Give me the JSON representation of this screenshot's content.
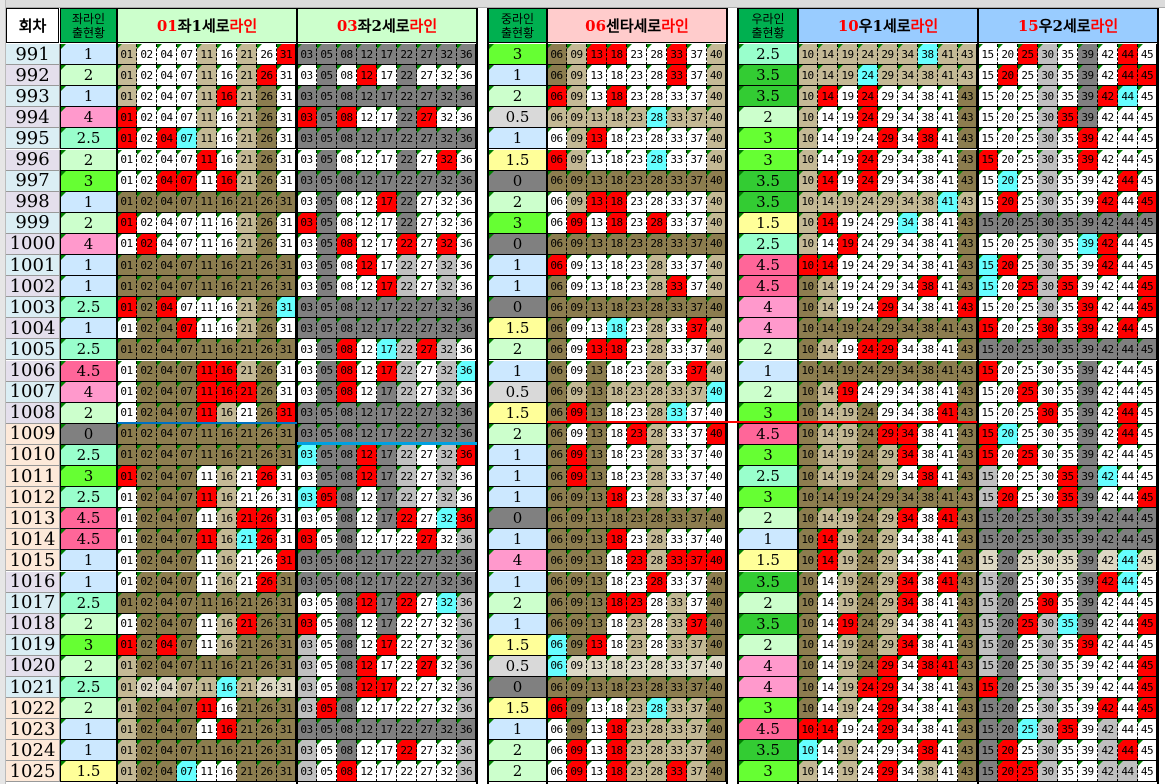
{
  "header": {
    "round": "회차",
    "left_status": [
      "좌라인",
      "출현황"
    ],
    "mid_status": [
      "중라인",
      "출현황"
    ],
    "right_status": [
      "우라인",
      "출현황"
    ],
    "blocks": [
      {
        "num": "01",
        "mid": "좌1세로",
        "tail": "라인"
      },
      {
        "num": "03",
        "mid": " 좌2세로",
        "tail": "라인"
      },
      {
        "num": "06",
        "mid": " 센타세로",
        "tail": "라인"
      },
      {
        "num": "10",
        "mid": " 우1세로",
        "tail": "라인"
      },
      {
        "num": "15",
        "mid": " 우2세로",
        "tail": "라인"
      }
    ]
  },
  "block_numbers": [
    [
      "01",
      "02",
      "04",
      "07",
      "11",
      "16",
      "21",
      "26",
      "31"
    ],
    [
      "03",
      "05",
      "08",
      "12",
      "17",
      "22",
      "27",
      "32",
      "36"
    ],
    [
      "06",
      "09",
      "13",
      "18",
      "23",
      "28",
      "33",
      "37",
      "40"
    ],
    [
      "10",
      "14",
      "19",
      "24",
      "29",
      "34",
      "38",
      "41",
      "43"
    ],
    [
      "15",
      "20",
      "25",
      "30",
      "35",
      "39",
      "42",
      "44",
      "45"
    ]
  ],
  "colors": {
    "W": "#ffffff",
    "T": "#c4b995",
    "O": "#8c7d4f",
    "G": "#808080",
    "L": "#c0c0c0",
    "K": "#ddd8c4",
    "R": "#ff0000",
    "C": "#66ffff"
  },
  "score_colors": {
    "0": "#808080",
    "0.5": "#d9d9d9",
    "1": "#cce8ff",
    "1.5": "#ffff99",
    "2": "#ccffcc",
    "2.5": "#99ffcc",
    "3": "#66ff33",
    "3.5": "#33cc33",
    "4": "#ff99cc",
    "4.5": "#ff6699"
  },
  "header_colors": {
    "status": "#00b050",
    "left": "#ccffcc",
    "center": "#ffcccc",
    "right": "#99ccff"
  },
  "rows": [
    {
      "round": "991",
      "left": "1",
      "mid": "3",
      "right": "2.5",
      "cells": "TWWWTWTWR GGGGGGGGG OTRRWWRWT TTTTTTCTT WWRLWGWRW"
    },
    {
      "round": "992",
      "left": "2",
      "mid": "1",
      "right": "3.5",
      "cells": "TWWWTWTRW WGWRWGWWW OTWWWWRWT TTTCTTTTT WRWLWGWRR"
    },
    {
      "round": "993",
      "left": "1",
      "mid": "2",
      "right": "3.5",
      "cells": "TWWWTRTOW GGGGGGGGG RTWRWWWWT TRWRWWWWO WWWLWGRCW"
    },
    {
      "round": "994",
      "left": "4",
      "mid": "0.5",
      "right": "2",
      "cells": "RWWWTWTOW RGRWWGRWW TTTTTCTTT TWWRWWWWO WWWLRGWWW"
    },
    {
      "round": "995",
      "left": "2.5",
      "mid": "1",
      "right": "3",
      "cells": "RWRCTWTOW GGGGGGGGG WTRWWWWWT TWWWRWRWO WWWLWRWWW"
    },
    {
      "round": "996",
      "left": "2",
      "mid": "1.5",
      "right": "3",
      "cells": "WWWWRWTOW WGWWWGWRW RTWWWCWWT TWWRWWWWO RWWLWRWWW"
    },
    {
      "round": "997",
      "left": "3",
      "mid": "0",
      "right": "3.5",
      "cells": "WWRRWRTOW GGGGGGGGG OOOOOOOOO TRWRWWWWO WCWLWWWRW"
    },
    {
      "round": "998",
      "left": "1",
      "mid": "2",
      "right": "3.5",
      "cells": "OOOOOOOOO WGWWRGWWW WTRRWWWWT TTTTTTTCT WRWLWWRWR"
    },
    {
      "round": "999",
      "left": "2",
      "mid": "3",
      "right": "1.5",
      "cells": "RWWWWWTOW RGWWWGWWW WRWRWRWWT TRWWWCWWO GGGGGGGGG"
    },
    {
      "round": "1000",
      "left": "4",
      "mid": "0",
      "right": "2.5",
      "cells": "WRWWWWTOW WGRWWRWRW OOOOOOOOO TWRWWWWWO WWWLWCRWW"
    },
    {
      "round": "1001",
      "left": "1",
      "mid": "1",
      "right": "4.5",
      "cells": "OOOOOOOOO WGWRWLWLW RWWWWTWWT RRWWWWWWO CRWLWWRWW"
    },
    {
      "round": "1002",
      "left": "1",
      "mid": "1",
      "right": "4.5",
      "cells": "OOOOOOOOO WGWWRLWLW OWWWWTRWT OTWWWWRWO CWRLRWWWR"
    },
    {
      "round": "1003",
      "left": "2.5",
      "mid": "0",
      "right": "4",
      "cells": "RORWWWTOC GGGGGGGGG OOOOOOOOO OTWWRWWWR WWWLWRWWR"
    },
    {
      "round": "1004",
      "left": "1",
      "mid": "1.5",
      "right": "4",
      "cells": "WOORWWTOW GGGGGGGGG OWWCWTWRT OOOOOOOOO RWWRWRWRW"
    },
    {
      "round": "1005",
      "left": "2.5",
      "mid": "2",
      "right": "2",
      "cells": "OOOOOOOOO WGRWCLRLW OWRRWTWWT OTWRRWWWO GGGGGGGGG"
    },
    {
      "round": "1006",
      "left": "4.5",
      "mid": "1",
      "right": "1",
      "cells": "WOOORRTOW WGRWRLWLC OWOWWTWRT OOOOOOOOO RWWWWGWWW"
    },
    {
      "round": "1007",
      "left": "4",
      "mid": "0.5",
      "right": "2",
      "cells": "WOOORRROW WGRWGLWLW OTOTTTTTC OTRWWWWWO WWRWWGWWW"
    },
    {
      "round": "1008",
      "left": "2",
      "mid": "1.5",
      "right": "3",
      "cells": "WOOORTWOR GGGGGGGGG OROWWTCWW OTTOWWWRO WWWRWGWRW"
    },
    {
      "round": "1009",
      "left": "0",
      "mid": "2",
      "right": "4.5",
      "cells": "OOOOOOOOO GGGGGGGGG OWOWRTWWR OTTORRWWO RCWWWGWRW"
    },
    {
      "round": "1010",
      "left": "2.5",
      "mid": "1",
      "right": "3",
      "cells": "OOOOOOOOO CGGRGLWLR OROWWTWWW OTTOTRWWO RWRWWGWWW"
    },
    {
      "round": "1011",
      "left": "3",
      "mid": "1",
      "right": "2.5",
      "cells": "ROOOWTWRW WGGRGLWLW OROWWTWWW OTTOTWRWO LWWWRGCWW"
    },
    {
      "round": "1012",
      "left": "2.5",
      "mid": "1",
      "right": "3",
      "cells": "WOOORTWWW CRGWGLWLW OOORWTWWW OOOOOOOOO LRWWRGWWR"
    },
    {
      "round": "1013",
      "left": "4.5",
      "mid": "0",
      "right": "2",
      "cells": "WOOOWTRRW WWGWGRWCR OOOOOOOOO OTTOTRWRO GGGGGGGGG"
    },
    {
      "round": "1014",
      "left": "4.5",
      "mid": "1",
      "right": "1",
      "cells": "WOOORTCRW RWGWWWRWL OOORWTWWW ORTOTWWWO GGGGGGGGG"
    },
    {
      "round": "1015",
      "left": "1",
      "mid": "4",
      "right": "1.5",
      "cells": "WOOOWTWWR GGGGGGGGG OOOWRTRRR ORTOTWWWO KGKKKGKCK"
    },
    {
      "round": "1016",
      "left": "1",
      "mid": "1",
      "right": "3.5",
      "cells": "WOOOWTWRO GGGGGGGGG OOOWWRWWO OWTOTRWRO LGWWWGRCW"
    },
    {
      "round": "1017",
      "left": "2.5",
      "mid": "2",
      "right": "2",
      "cells": "OOOOOOOOO WWGRGRWCL OOORRWTWO OWTOTRWWO LGWRWGWWW"
    },
    {
      "round": "1018",
      "left": "2",
      "mid": "1",
      "right": "3.5",
      "cells": "WOOOWTROO RWGWGWWWL OOOWTWTRO OWROTWWWO LGRLCGWWR"
    },
    {
      "round": "1019",
      "left": "3",
      "mid": "1.5",
      "right": "2",
      "cells": "RORO WTOOO LWGWRWWWL CORWTWTTO OWTOTRWWO LGWLWRWWW"
    },
    {
      "round": "1020",
      "left": "2",
      "mid": "0.5",
      "right": "4",
      "cells": "TOOOOOOOO LWGRWWRWL CKKKKKKKK OWTORWRRO LGWLWWWWR"
    },
    {
      "round": "1021",
      "left": "2.5",
      "mid": "0",
      "right": "4",
      "cells": "TKKTTCTKK LWGRRWWWL OOOOOOOOO OWTRRWWWO RGWLWWWWR"
    },
    {
      "round": "1022",
      "left": "2",
      "mid": "1.5",
      "right": "3",
      "cells": "TOOORWOOO LRGWWWWWL ROWWTCTTO OWTWRWWWO GGWLWWRWR"
    },
    {
      "round": "1023",
      "left": "1",
      "mid": "1",
      "right": "4.5",
      "cells": "TOOOWROOO GGGGGGGGG WOWRTTTTO RRWWRWWWO GGCLRWLWW"
    },
    {
      "round": "1024",
      "left": "1",
      "mid": "2",
      "right": "3.5",
      "cells": "TOOOOOOOO LWGWWRWWL WRWRTTTTO CWTWWWRWO GRWLWWLRW"
    },
    {
      "round": "1025",
      "left": "1.5",
      "mid": "2",
      "right": "3",
      "cells": "TOOCWWOOO LWRWWWWWL WRWRTTRTO TWTWRWTWO GRRLWWLLW"
    }
  ]
}
